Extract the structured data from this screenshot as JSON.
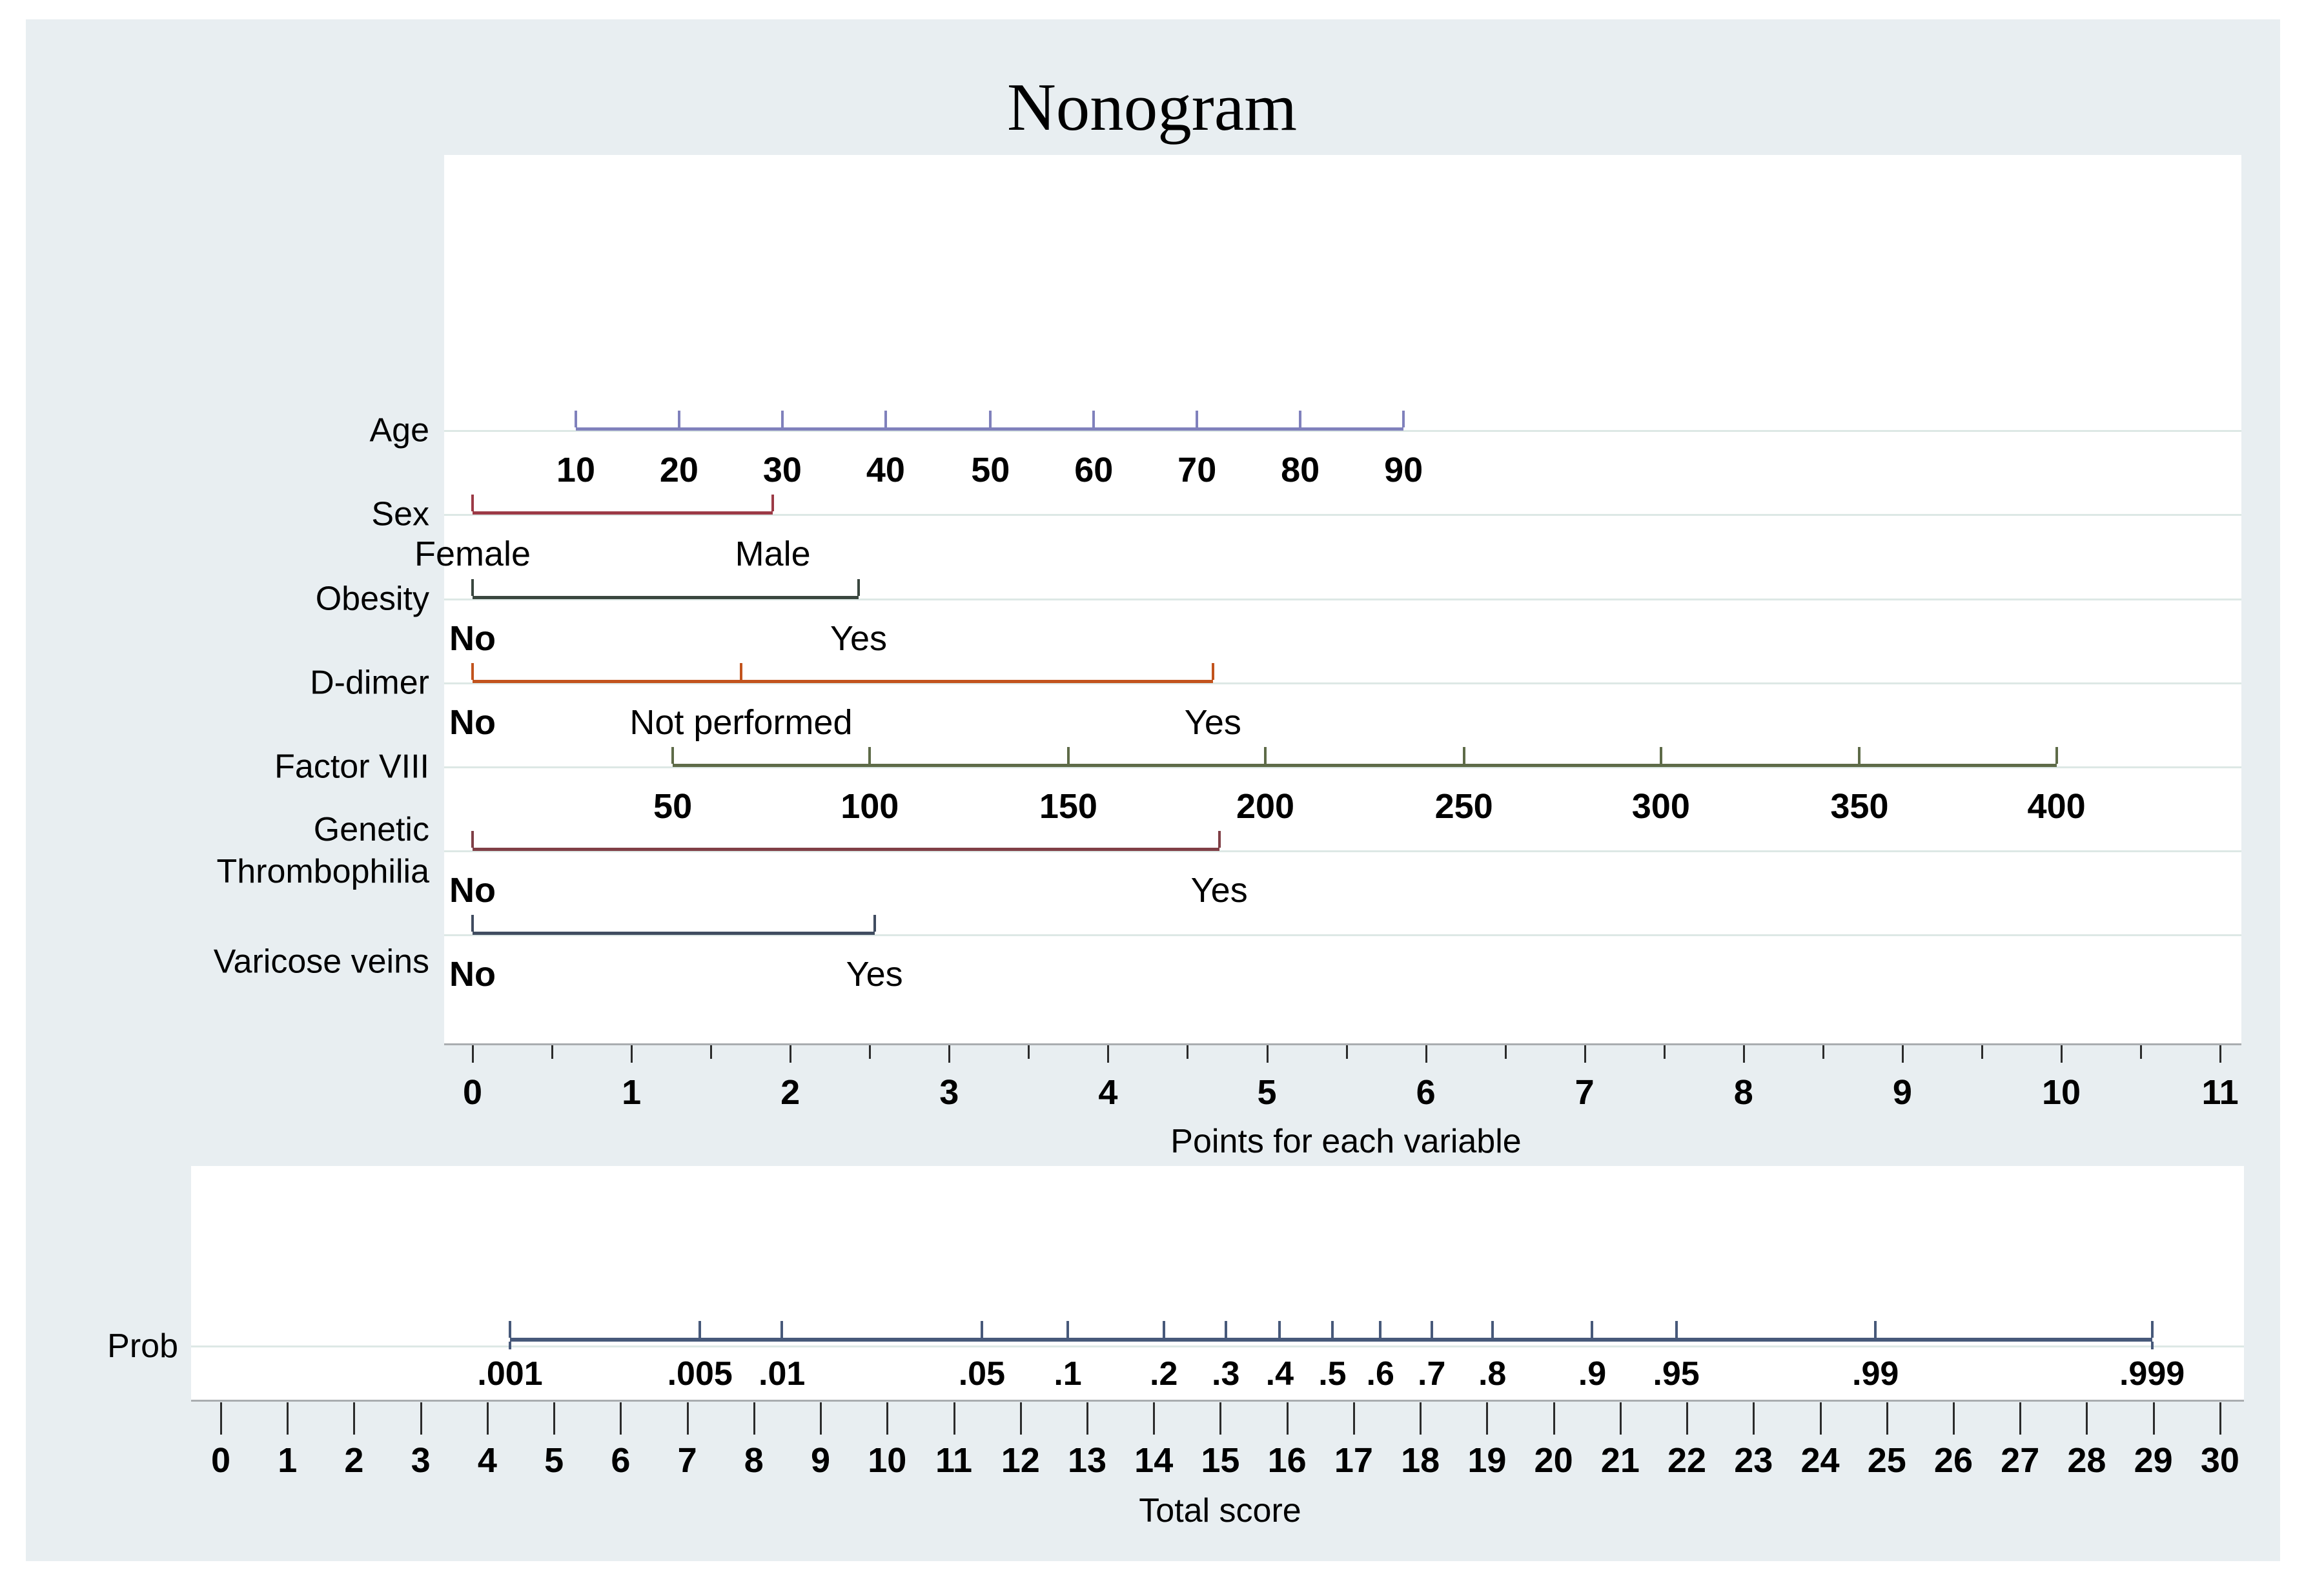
{
  "title": "Nonogram",
  "colors": {
    "page_bg": "#ffffff",
    "panel_bg": "#e8eef1",
    "plot_bg": "#ffffff",
    "track_line": "#dde8e5",
    "axis_line": "#a9adb0",
    "tick_mark": "#2b2b2b",
    "text": "#000000",
    "prob_line": "#47597a"
  },
  "chart_data": {
    "type": "nomogram",
    "title": "Nonogram",
    "points_axis": {
      "label": "Points for each variable",
      "min": 0,
      "max": 11,
      "major_step": 1,
      "minor_step": 0.5,
      "tick_labels": [
        "0",
        "1",
        "2",
        "3",
        "4",
        "5",
        "6",
        "7",
        "8",
        "9",
        "10",
        "11"
      ]
    },
    "variables": [
      {
        "name": "Age",
        "name_lines": [
          "Age"
        ],
        "color": "#8081bc",
        "segment": [
          0.65,
          5.86
        ],
        "ticks": [
          {
            "label": "10",
            "points": 0.65,
            "bold": true
          },
          {
            "label": "20",
            "points": 1.3,
            "bold": true
          },
          {
            "label": "30",
            "points": 1.95,
            "bold": true
          },
          {
            "label": "40",
            "points": 2.6,
            "bold": true
          },
          {
            "label": "50",
            "points": 3.26,
            "bold": true
          },
          {
            "label": "60",
            "points": 3.91,
            "bold": true
          },
          {
            "label": "70",
            "points": 4.56,
            "bold": true
          },
          {
            "label": "80",
            "points": 5.21,
            "bold": true
          },
          {
            "label": "90",
            "points": 5.86,
            "bold": true
          }
        ]
      },
      {
        "name": "Sex",
        "name_lines": [
          "Sex"
        ],
        "color": "#9c3a46",
        "segment": [
          0,
          1.89
        ],
        "ticks": [
          {
            "label": "Female",
            "points": 0,
            "bold": false
          },
          {
            "label": "Male",
            "points": 1.89,
            "bold": false
          }
        ]
      },
      {
        "name": "Obesity",
        "name_lines": [
          "Obesity"
        ],
        "color": "#3a473f",
        "segment": [
          0,
          2.43
        ],
        "ticks": [
          {
            "label": "No",
            "points": 0,
            "bold": true
          },
          {
            "label": "Yes",
            "points": 2.43,
            "bold": false
          }
        ]
      },
      {
        "name": "D-dimer",
        "name_lines": [
          "D-dimer"
        ],
        "color": "#c2531d",
        "segment": [
          0,
          4.66
        ],
        "ticks": [
          {
            "label": "No",
            "points": 0,
            "bold": true
          },
          {
            "label": "Not performed",
            "points": 1.69,
            "bold": false
          },
          {
            "label": "Yes",
            "points": 4.66,
            "bold": false
          }
        ]
      },
      {
        "name": "Factor VIII",
        "name_lines": [
          "Factor VIII"
        ],
        "color": "#5e6b48",
        "segment": [
          1.26,
          9.97
        ],
        "ticks": [
          {
            "label": "50",
            "points": 1.26,
            "bold": true
          },
          {
            "label": "100",
            "points": 2.5,
            "bold": true
          },
          {
            "label": "150",
            "points": 3.75,
            "bold": true
          },
          {
            "label": "200",
            "points": 4.99,
            "bold": true
          },
          {
            "label": "250",
            "points": 6.24,
            "bold": true
          },
          {
            "label": "300",
            "points": 7.48,
            "bold": true
          },
          {
            "label": "350",
            "points": 8.73,
            "bold": true
          },
          {
            "label": "400",
            "points": 9.97,
            "bold": true
          }
        ]
      },
      {
        "name": "Genetic Thrombophilia",
        "name_lines": [
          "Genetic",
          "Thrombophilia"
        ],
        "color": "#803f46",
        "segment": [
          0,
          4.7
        ],
        "ticks": [
          {
            "label": "No",
            "points": 0,
            "bold": true
          },
          {
            "label": "Yes",
            "points": 4.7,
            "bold": false
          }
        ]
      },
      {
        "name": "Varicose veins",
        "name_lines": [
          "Varicose veins"
        ],
        "color": "#404c60",
        "segment": [
          0,
          2.53
        ],
        "ticks": [
          {
            "label": "No",
            "points": 0,
            "bold": true
          },
          {
            "label": "Yes",
            "points": 2.53,
            "bold": false
          }
        ]
      }
    ],
    "prob_scale": {
      "row_label": "Prob",
      "line_span": [
        4.34,
        28.98
      ],
      "ticks": [
        {
          "label": ".001",
          "score": 4.34
        },
        {
          "label": ".005",
          "score": 7.19
        },
        {
          "label": ".01",
          "score": 8.42
        },
        {
          "label": ".05",
          "score": 11.42
        },
        {
          "label": ".1",
          "score": 12.71
        },
        {
          "label": ".2",
          "score": 14.15
        },
        {
          "label": ".3",
          "score": 15.08
        },
        {
          "label": ".4",
          "score": 15.89
        },
        {
          "label": ".5",
          "score": 16.68
        },
        {
          "label": ".6",
          "score": 17.4
        },
        {
          "label": ".7",
          "score": 18.17
        },
        {
          "label": ".8",
          "score": 19.08
        },
        {
          "label": ".9",
          "score": 20.58
        },
        {
          "label": ".95",
          "score": 21.84
        },
        {
          "label": ".99",
          "score": 24.83
        },
        {
          "label": ".999",
          "score": 28.98
        }
      ]
    },
    "total_score_axis": {
      "label": "Total score",
      "min": 0,
      "max": 30,
      "step": 1,
      "tick_labels": [
        "0",
        "1",
        "2",
        "3",
        "4",
        "5",
        "6",
        "7",
        "8",
        "9",
        "10",
        "11",
        "12",
        "13",
        "14",
        "15",
        "16",
        "17",
        "18",
        "19",
        "20",
        "21",
        "22",
        "23",
        "24",
        "25",
        "26",
        "27",
        "28",
        "29",
        "30"
      ]
    }
  }
}
